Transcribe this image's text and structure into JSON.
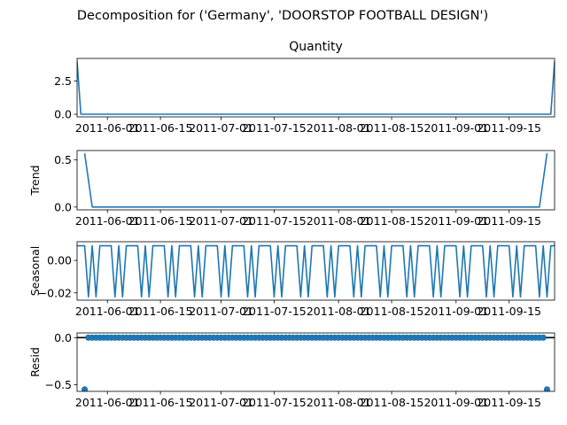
{
  "suptitle": "Decomposition for ('Germany', 'DOORSTOP FOOTBALL DESIGN')",
  "chart_data": [
    {
      "type": "line",
      "title": "Quantity",
      "ylabel": "",
      "color": "#1f77b4",
      "ylim": [
        -0.2,
        4.2
      ],
      "yticks": [
        0.0,
        2.5
      ],
      "ytick_labels": [
        "0.0",
        "2.5"
      ],
      "xlim": [
        "2011-05-24",
        "2011-09-27"
      ],
      "xtick_dates": [
        "2011-06-01",
        "2011-06-15",
        "2011-07-01",
        "2011-07-15",
        "2011-08-01",
        "2011-08-15",
        "2011-09-01",
        "2011-09-15"
      ],
      "xtick_labels": [
        "2011-06-01",
        "2011-06-15",
        "2011-07-01",
        "2011-07-15",
        "2011-08-01",
        "2011-08-15",
        "2011-09-01",
        "2011-09-15"
      ],
      "points": [
        [
          "2011-05-24",
          4.0
        ],
        [
          "2011-05-25",
          0.0
        ],
        [
          "2011-09-26",
          0.0
        ],
        [
          "2011-09-27",
          4.0
        ]
      ]
    },
    {
      "type": "line",
      "title": "",
      "ylabel": "Trend",
      "color": "#1f77b4",
      "ylim": [
        -0.03,
        0.6
      ],
      "yticks": [
        0.0,
        0.5
      ],
      "ytick_labels": [
        "0.0",
        "0.5"
      ],
      "xlim": [
        "2011-05-24",
        "2011-09-27"
      ],
      "xtick_dates": [
        "2011-06-01",
        "2011-06-15",
        "2011-07-01",
        "2011-07-15",
        "2011-08-01",
        "2011-08-15",
        "2011-09-01",
        "2011-09-15"
      ],
      "xtick_labels": [
        "2011-06-01",
        "2011-06-15",
        "2011-07-01",
        "2011-07-15",
        "2011-08-01",
        "2011-08-15",
        "2011-09-01",
        "2011-09-15"
      ],
      "points": [
        [
          "2011-05-26",
          0.57
        ],
        [
          "2011-05-28",
          0.0
        ],
        [
          "2011-09-23",
          0.0
        ],
        [
          "2011-09-25",
          0.57
        ]
      ]
    },
    {
      "type": "line",
      "title": "",
      "ylabel": "Seasonal",
      "color": "#1f77b4",
      "ylim": [
        -0.0245,
        0.0115
      ],
      "yticks": [
        0.0,
        -0.02
      ],
      "ytick_labels": [
        "0.00",
        "−0.02"
      ],
      "xlim": [
        "2011-05-24",
        "2011-09-27"
      ],
      "xtick_dates": [
        "2011-06-01",
        "2011-06-15",
        "2011-07-01",
        "2011-07-15",
        "2011-08-01",
        "2011-08-15",
        "2011-09-01",
        "2011-09-15"
      ],
      "xtick_labels": [
        "2011-06-01",
        "2011-06-15",
        "2011-07-01",
        "2011-07-15",
        "2011-08-01",
        "2011-08-15",
        "2011-09-01",
        "2011-09-15"
      ],
      "start": "2011-05-24",
      "weekly_pattern": [
        0.009,
        0.009,
        0.009,
        -0.0225,
        0.009,
        -0.0225,
        0.009
      ],
      "days": 127
    },
    {
      "type": "scatter",
      "title": "",
      "ylabel": "Resid",
      "color": "#1f77b4",
      "ylim": [
        -0.57,
        0.05
      ],
      "yticks": [
        0.0,
        -0.5
      ],
      "ytick_labels": [
        "0.0",
        "−0.5"
      ],
      "xlim": [
        "2011-05-24",
        "2011-09-27"
      ],
      "xtick_dates": [
        "2011-06-01",
        "2011-06-15",
        "2011-07-01",
        "2011-07-15",
        "2011-08-01",
        "2011-08-15",
        "2011-09-01",
        "2011-09-15"
      ],
      "xtick_labels": [
        "2011-06-01",
        "2011-06-15",
        "2011-07-01",
        "2011-07-15",
        "2011-08-01",
        "2011-08-15",
        "2011-09-01",
        "2011-09-15"
      ],
      "baseline": 0.0,
      "start": "2011-05-26",
      "end": "2011-09-25",
      "default_value": 0.0,
      "outliers": [
        [
          "2011-05-26",
          -0.55
        ],
        [
          "2011-09-25",
          -0.55
        ]
      ]
    }
  ]
}
